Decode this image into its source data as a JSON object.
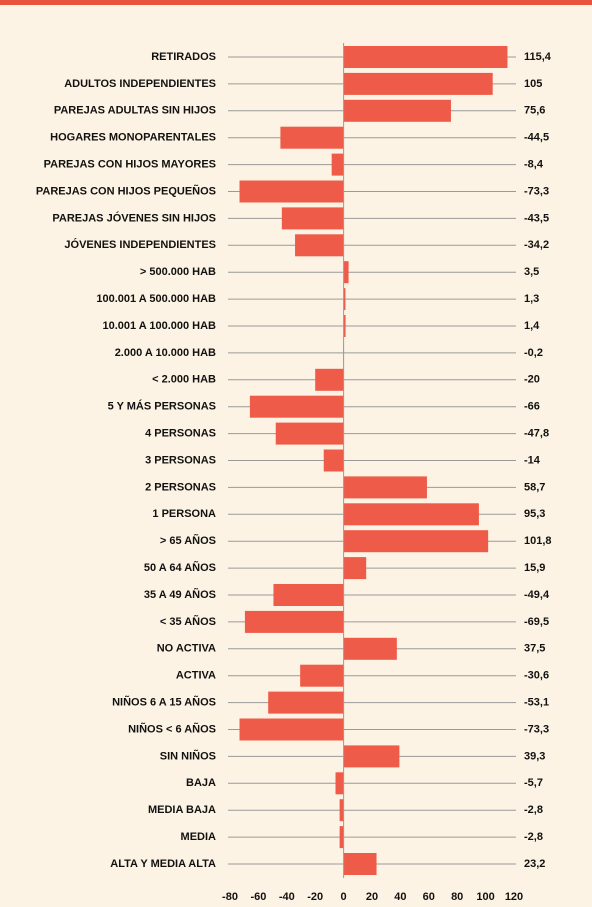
{
  "chart_data": {
    "type": "barh",
    "categories": [
      "RETIRADOS",
      "ADULTOS INDEPENDIENTES",
      "PAREJAS ADULTAS SIN HIJOS",
      "HOGARES MONOPARENTALES",
      "PAREJAS CON HIJOS MAYORES",
      "PAREJAS CON HIJOS PEQUEÑOS",
      "PAREJAS JÓVENES SIN HIJOS",
      "JÓVENES INDEPENDIENTES",
      "> 500.000 HAB",
      "100.001 A 500.000 HAB",
      "10.001 A 100.000 HAB",
      "2.000 A 10.000 HAB",
      "< 2.000 HAB",
      "5 Y MÁS PERSONAS",
      "4 PERSONAS",
      "3 PERSONAS",
      "2 PERSONAS",
      "1 PERSONA",
      "> 65 AÑOS",
      "50 A 64 AÑOS",
      "35 A 49 AÑOS",
      "< 35 AÑOS",
      "NO ACTIVA",
      "ACTIVA",
      "NIÑOS 6 A 15 AÑOS",
      "NIÑOS < 6 AÑOS",
      "SIN NIÑOS",
      "BAJA",
      "MEDIA BAJA",
      "MEDIA",
      "ALTA Y MEDIA ALTA"
    ],
    "values": [
      115.4,
      105,
      75.6,
      -44.5,
      -8.4,
      -73.3,
      -43.5,
      -34.2,
      3.5,
      1.3,
      1.4,
      -0.2,
      -20,
      -66,
      -47.8,
      -14,
      58.7,
      95.3,
      101.8,
      15.9,
      -49.4,
      -69.5,
      37.5,
      -30.6,
      -53.1,
      -73.3,
      39.3,
      -5.7,
      -2.8,
      -2.8,
      23.2
    ],
    "value_labels": [
      "115,4",
      "105",
      "75,6",
      "-44,5",
      "-8,4",
      "-73,3",
      "-43,5",
      "-34,2",
      "3,5",
      "1,3",
      "1,4",
      "-0,2",
      "-20",
      "-66",
      "-47,8",
      "-14",
      "58,7",
      "95,3",
      "101,8",
      "15,9",
      "-49,4",
      "-69,5",
      "37,5",
      "-30,6",
      "-53,1",
      "-73,3",
      "39,3",
      "-5,7",
      "-2,8",
      "-2,8",
      "23,2"
    ],
    "color": "#ef5b49",
    "xlim": [
      -80,
      120
    ],
    "xticks": [
      -80,
      -60,
      -40,
      -20,
      0,
      20,
      40,
      60,
      80,
      100,
      120
    ]
  }
}
